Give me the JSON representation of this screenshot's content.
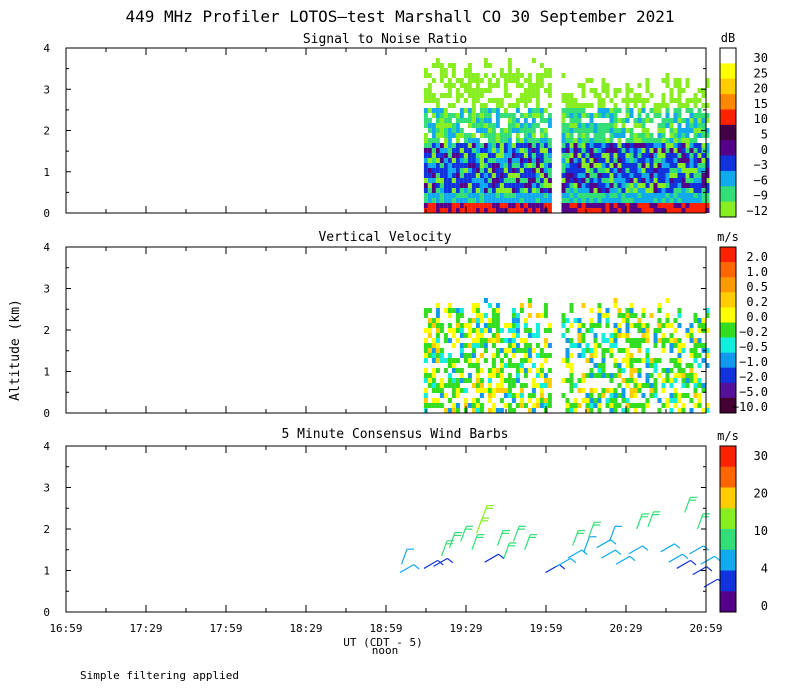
{
  "title": "449 MHz Profiler LOTOS—test Marshall CO 30 September 2021",
  "footer": "Simple filtering applied",
  "y_axis_label": "Altitude (km)",
  "x_axis": {
    "label": "UT  (CDT - 5)",
    "sublabel": "noon",
    "tick_labels": [
      "16:59",
      "17:29",
      "17:59",
      "18:29",
      "18:59",
      "19:29",
      "19:59",
      "20:29",
      "20:59"
    ],
    "tick_hours": [
      16.983,
      17.483,
      17.983,
      18.483,
      18.983,
      19.483,
      19.983,
      20.483,
      20.983
    ],
    "range_hours": [
      16.983,
      20.983
    ]
  },
  "chart_data": [
    {
      "type": "heatmap",
      "title": "Signal to Noise Ratio",
      "ylabel": "Altitude (km)",
      "ylim": [
        0,
        4
      ],
      "ytick_labels": [
        "0",
        "1",
        "2",
        "3",
        "4"
      ],
      "colorbar": {
        "unit": "dB",
        "labels": [
          "30",
          "25",
          "20",
          "15",
          "10",
          "5",
          "0",
          "−3",
          "−6",
          "−9",
          "−12"
        ],
        "colors": [
          "#ffffff",
          "#ffff00",
          "#ffcc00",
          "#ff8800",
          "#ff2200",
          "#440044",
          "#550088",
          "#1133dd",
          "#11aaee",
          "#33dd77",
          "#88ee22"
        ]
      },
      "data_segments": [
        {
          "start": 19.22,
          "end": 20.01,
          "top_km": 3.9
        },
        {
          "start": 20.08,
          "end": 20.98,
          "top_km": 3.4
        }
      ]
    },
    {
      "type": "heatmap",
      "title": "Vertical Velocity",
      "ylabel": "Altitude (km)",
      "ylim": [
        0,
        4
      ],
      "ytick_labels": [
        "0",
        "1",
        "2",
        "3",
        "4"
      ],
      "colorbar": {
        "unit": "m/s",
        "labels": [
          "2.0",
          "1.0",
          "0.5",
          "0.2",
          "0.0",
          "−0.2",
          "−0.5",
          "−1.0",
          "−2.0",
          "−5.0",
          "−10.0"
        ],
        "colors": [
          "#ff2200",
          "#ff6600",
          "#ff9900",
          "#ffcc00",
          "#ffff00",
          "#33dd22",
          "#11eedd",
          "#1199ee",
          "#1133dd",
          "#551199",
          "#440033"
        ]
      },
      "data_segments": [
        {
          "start": 19.22,
          "end": 20.01,
          "top_km": 2.8
        },
        {
          "start": 20.08,
          "end": 20.98,
          "top_km": 2.8
        }
      ]
    },
    {
      "type": "scatter",
      "title": "5 Minute Consensus Wind Barbs",
      "ylabel": "Altitude (km)",
      "ylim": [
        0,
        4
      ],
      "ytick_labels": [
        "0",
        "1",
        "2",
        "3",
        "4"
      ],
      "colorbar": {
        "unit": "m/s",
        "labels": [
          "30",
          "20",
          "10",
          "4",
          "0"
        ],
        "colors": [
          "#ff2200",
          "#ff6600",
          "#ffcc00",
          "#88ee22",
          "#33dd77",
          "#11aaee",
          "#1133dd",
          "#550088"
        ]
      },
      "barbs": [
        {
          "t": 19.07,
          "alt": 0.95,
          "spd": 6
        },
        {
          "t": 19.08,
          "alt": 1.15,
          "spd": 7
        },
        {
          "t": 19.22,
          "alt": 1.05,
          "spd": 2
        },
        {
          "t": 19.28,
          "alt": 1.1,
          "spd": 2
        },
        {
          "t": 19.33,
          "alt": 1.35,
          "spd": 9
        },
        {
          "t": 19.38,
          "alt": 1.55,
          "spd": 10
        },
        {
          "t": 19.45,
          "alt": 1.7,
          "spd": 11
        },
        {
          "t": 19.52,
          "alt": 1.5,
          "spd": 9
        },
        {
          "t": 19.55,
          "alt": 1.9,
          "spd": 12
        },
        {
          "t": 19.58,
          "alt": 2.2,
          "spd": 12
        },
        {
          "t": 19.6,
          "alt": 1.2,
          "spd": 2
        },
        {
          "t": 19.68,
          "alt": 1.6,
          "spd": 10
        },
        {
          "t": 19.72,
          "alt": 1.3,
          "spd": 9
        },
        {
          "t": 19.78,
          "alt": 1.7,
          "spd": 11
        },
        {
          "t": 19.85,
          "alt": 1.5,
          "spd": 10
        },
        {
          "t": 19.98,
          "alt": 0.95,
          "spd": 3
        },
        {
          "t": 20.05,
          "alt": 1.1,
          "spd": 5
        },
        {
          "t": 20.12,
          "alt": 1.3,
          "spd": 6
        },
        {
          "t": 20.15,
          "alt": 1.6,
          "spd": 8
        },
        {
          "t": 20.22,
          "alt": 1.45,
          "spd": 7
        },
        {
          "t": 20.25,
          "alt": 1.8,
          "spd": 9
        },
        {
          "t": 20.3,
          "alt": 1.55,
          "spd": 6
        },
        {
          "t": 20.33,
          "alt": 1.3,
          "spd": 5
        },
        {
          "t": 20.38,
          "alt": 1.7,
          "spd": 7
        },
        {
          "t": 20.42,
          "alt": 1.15,
          "spd": 5
        },
        {
          "t": 20.5,
          "alt": 1.4,
          "spd": 6
        },
        {
          "t": 20.55,
          "alt": 2.0,
          "spd": 10
        },
        {
          "t": 20.62,
          "alt": 2.05,
          "spd": 11
        },
        {
          "t": 20.7,
          "alt": 1.45,
          "spd": 6
        },
        {
          "t": 20.75,
          "alt": 1.2,
          "spd": 5
        },
        {
          "t": 20.8,
          "alt": 1.05,
          "spd": 3
        },
        {
          "t": 20.85,
          "alt": 2.4,
          "spd": 10
        },
        {
          "t": 20.88,
          "alt": 1.4,
          "spd": 4
        },
        {
          "t": 20.9,
          "alt": 0.9,
          "spd": 2
        },
        {
          "t": 20.93,
          "alt": 2.0,
          "spd": 11
        },
        {
          "t": 20.95,
          "alt": 1.15,
          "spd": 4
        },
        {
          "t": 20.97,
          "alt": 0.6,
          "spd": 2
        }
      ]
    }
  ]
}
